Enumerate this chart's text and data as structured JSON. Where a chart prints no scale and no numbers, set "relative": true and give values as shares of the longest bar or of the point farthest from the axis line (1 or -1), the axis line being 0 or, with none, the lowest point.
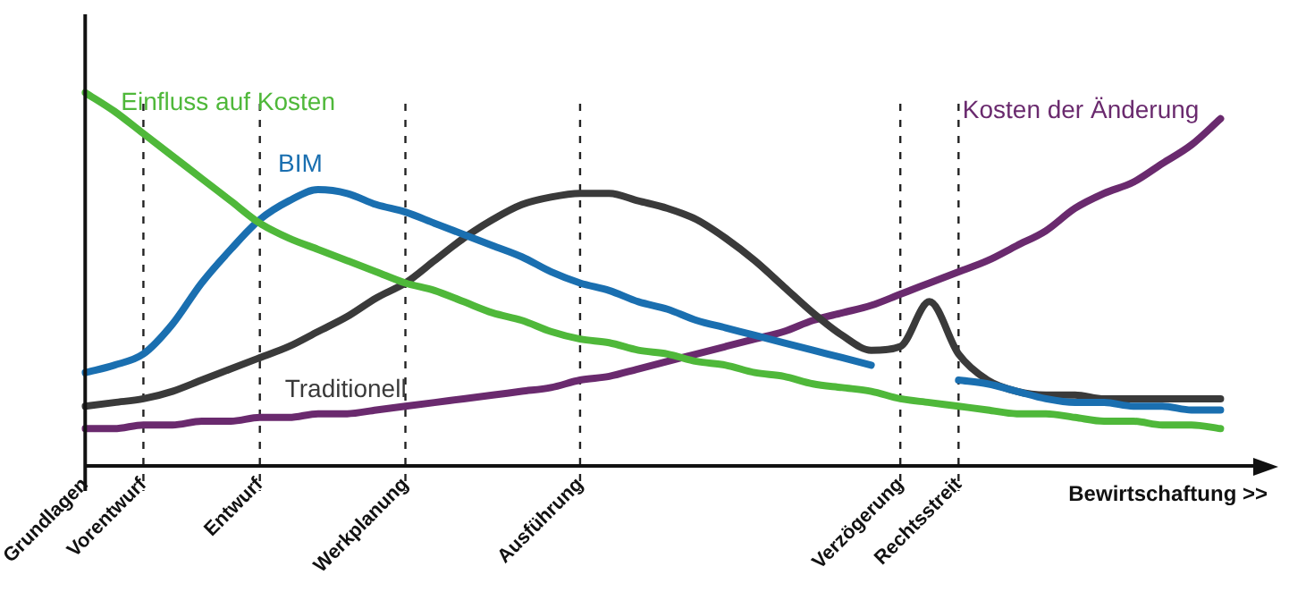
{
  "chart_data": {
    "type": "line",
    "relative": true,
    "xlabel": "Bewirtschaftung >>",
    "categories": [
      "Grundlagen",
      null,
      "Vorentwurf",
      null,
      null,
      null,
      "Entwurf",
      null,
      null,
      null,
      null,
      "Werkplanung",
      null,
      null,
      null,
      null,
      null,
      "Ausführung",
      null,
      null,
      null,
      null,
      null,
      null,
      null,
      null,
      null,
      null,
      "Verzögerung",
      null,
      "Rechtsstreit",
      null,
      null,
      null,
      null,
      null,
      null,
      null,
      null,
      null,
      null
    ],
    "grid": "x",
    "legend": false,
    "tick_labels": "x",
    "marker": "none",
    "line_style": "solid",
    "series": [
      {
        "name": "Einfluss auf Kosten",
        "color": "#4fb83a",
        "values": [
          1.0,
          0.95,
          0.89,
          0.83,
          0.77,
          0.71,
          0.65,
          0.61,
          0.58,
          0.55,
          0.52,
          0.49,
          0.47,
          0.44,
          0.41,
          0.39,
          0.36,
          0.34,
          0.33,
          0.31,
          0.3,
          0.28,
          0.27,
          0.25,
          0.24,
          0.22,
          0.21,
          0.2,
          0.18,
          0.17,
          0.16,
          0.15,
          0.14,
          0.14,
          0.13,
          0.12,
          0.12,
          0.11,
          0.11,
          0.1,
          null
        ]
      },
      {
        "name": "BIM",
        "color": "#1a6fb0",
        "values": [
          0.25,
          0.27,
          0.3,
          0.38,
          0.49,
          0.58,
          0.66,
          0.71,
          0.74,
          0.73,
          0.7,
          0.68,
          0.65,
          0.62,
          0.59,
          0.56,
          0.52,
          0.49,
          0.47,
          0.44,
          0.42,
          0.39,
          0.37,
          0.35,
          0.33,
          0.31,
          0.29,
          0.27,
          null,
          null,
          0.23,
          0.22,
          0.2,
          0.18,
          0.17,
          0.17,
          0.16,
          0.16,
          0.15,
          0.15,
          null
        ]
      },
      {
        "name": "Traditionell",
        "color": "#3a3a3a",
        "values": [
          0.16,
          0.17,
          0.18,
          0.2,
          0.23,
          0.26,
          0.29,
          0.32,
          0.36,
          0.4,
          0.45,
          0.49,
          0.55,
          0.61,
          0.66,
          0.7,
          0.72,
          0.73,
          0.73,
          0.71,
          0.69,
          0.66,
          0.61,
          0.55,
          0.48,
          0.41,
          0.35,
          0.31,
          0.32,
          0.44,
          0.3,
          0.23,
          0.2,
          0.19,
          0.19,
          0.18,
          0.18,
          0.18,
          0.18,
          0.18,
          null
        ]
      },
      {
        "name": "Kosten der Änderung",
        "color": "#6a2a6e",
        "values": [
          0.1,
          0.1,
          0.11,
          0.11,
          0.12,
          0.12,
          0.13,
          0.13,
          0.14,
          0.14,
          0.15,
          0.16,
          0.17,
          0.18,
          0.19,
          0.2,
          0.21,
          0.23,
          0.24,
          0.26,
          0.28,
          0.3,
          0.32,
          0.34,
          0.36,
          0.39,
          0.41,
          0.43,
          0.46,
          0.49,
          0.52,
          0.55,
          0.59,
          0.63,
          0.69,
          0.73,
          0.76,
          0.81,
          0.86,
          0.93,
          null
        ]
      }
    ]
  }
}
